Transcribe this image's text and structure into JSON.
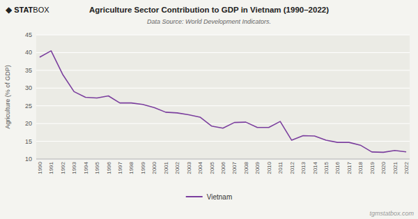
{
  "chart_data": {
    "type": "line",
    "title": "Agriculture Sector Contribution to GDP in Vietnam (1990–2022)",
    "subtitle": "Data Source: World Development Indicators.",
    "ylabel": "Agriculture (% of GDP)",
    "annotations": [
      "◆",
      "STAT",
      "BOX",
      "tgmstatbox.com"
    ],
    "x": [
      1990,
      1991,
      1992,
      1993,
      1994,
      1995,
      1996,
      1997,
      1998,
      1999,
      2000,
      2001,
      2002,
      2003,
      2004,
      2005,
      2006,
      2007,
      2008,
      2009,
      2010,
      2011,
      2012,
      2013,
      2014,
      2015,
      2016,
      2017,
      2018,
      2019,
      2020,
      2021,
      2022
    ],
    "series": [
      {
        "name": "Vietnam",
        "color": "#7B3F9E",
        "values": [
          38.7,
          40.5,
          33.9,
          29.0,
          27.4,
          27.2,
          27.8,
          25.8,
          25.8,
          25.4,
          24.5,
          23.2,
          23.0,
          22.5,
          21.8,
          19.3,
          18.7,
          20.3,
          20.4,
          18.9,
          18.9,
          20.6,
          15.3,
          16.6,
          16.5,
          15.3,
          14.7,
          14.7,
          13.9,
          12.0,
          11.9,
          12.4,
          12.0
        ]
      }
    ],
    "xlim": [
      1989.7,
      2022.3
    ],
    "xticks": [
      1990,
      1991,
      1992,
      1993,
      1994,
      1995,
      1996,
      1997,
      1998,
      1999,
      2000,
      2001,
      2002,
      2003,
      2004,
      2005,
      2006,
      2007,
      2008,
      2009,
      2010,
      2011,
      2012,
      2013,
      2014,
      2015,
      2016,
      2017,
      2018,
      2019,
      2020,
      2021,
      2022
    ],
    "ylim": [
      10,
      45
    ],
    "yticks": [
      10,
      15,
      20,
      25,
      30,
      35,
      40,
      45
    ],
    "grid": true,
    "legend": "bottom"
  }
}
